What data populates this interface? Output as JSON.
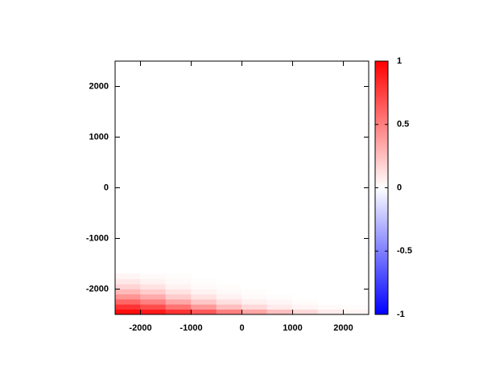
{
  "chart_data": {
    "type": "heatmap",
    "xlim": [
      -2500,
      2500
    ],
    "ylim": [
      -2500,
      2500
    ],
    "xticks": [
      -2000,
      -1000,
      0,
      1000,
      2000
    ],
    "yticks": [
      -2000,
      -1000,
      0,
      1000,
      2000
    ],
    "x": [
      -2250,
      -1750,
      -1250,
      -750,
      -250,
      250,
      750,
      1250,
      1750,
      2250
    ],
    "y": [
      -2450,
      -2350,
      -2250,
      -2150,
      -2050,
      -1950,
      -1850,
      -1750
    ],
    "z": [
      [
        0.95,
        0.9,
        0.8,
        0.65,
        0.5,
        0.35,
        0.25,
        0.15,
        0.08,
        0.04
      ],
      [
        0.8,
        0.7,
        0.55,
        0.4,
        0.25,
        0.15,
        0.08,
        0.04,
        0.02,
        0.01
      ],
      [
        0.6,
        0.5,
        0.35,
        0.22,
        0.12,
        0.06,
        0.03,
        0.01,
        0,
        0
      ],
      [
        0.42,
        0.33,
        0.2,
        0.11,
        0.05,
        0.02,
        0.01,
        0,
        0,
        0
      ],
      [
        0.28,
        0.2,
        0.11,
        0.05,
        0.02,
        0.01,
        0,
        0,
        0,
        0
      ],
      [
        0.17,
        0.11,
        0.05,
        0.02,
        0.01,
        0,
        0,
        0,
        0,
        0
      ],
      [
        0.09,
        0.05,
        0.02,
        0.01,
        0,
        0,
        0,
        0,
        0,
        0
      ],
      [
        0.04,
        0.02,
        0.01,
        0,
        0,
        0,
        0,
        0,
        0,
        0
      ]
    ],
    "colormap": [
      "#0000ff",
      "#ffffff",
      "#ff0000"
    ],
    "clim": [
      -1,
      1
    ],
    "cticks": [
      -1,
      -0.5,
      0,
      0.5,
      1
    ]
  }
}
